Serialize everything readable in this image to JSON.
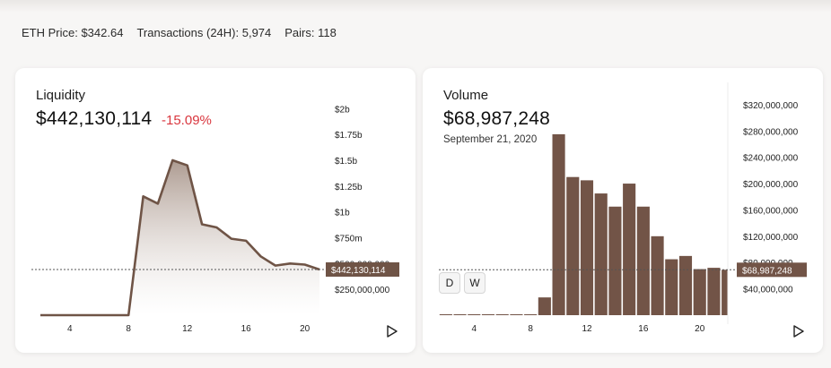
{
  "stats": {
    "eth_price": "ETH Price: $342.64",
    "transactions": "Transactions (24H): 5,974",
    "pairs": "Pairs: 118"
  },
  "liquidity": {
    "label": "Liquidity",
    "value": "$442,130,114",
    "change": "-15.09%",
    "current_tag": "$442,130,114",
    "y_ticks": [
      "$2b",
      "$1.75b",
      "$1.5b",
      "$1.25b",
      "$1b",
      "$750m",
      "$500,000,000",
      "$250,000,000"
    ],
    "x_ticks": [
      "4",
      "8",
      "12",
      "16",
      "20"
    ]
  },
  "volume": {
    "label": "Volume",
    "value": "$68,987,248",
    "date": "September 21, 2020",
    "current_tag": "$68,987,248",
    "y_ticks": [
      "$320,000,000",
      "$280,000,000",
      "$240,000,000",
      "$200,000,000",
      "$160,000,000",
      "$120,000,000",
      "$80,000,000",
      "$40,000,000"
    ],
    "x_ticks": [
      "4",
      "8",
      "12",
      "16",
      "20"
    ],
    "buttons": {
      "day": "D",
      "week": "W"
    }
  },
  "colors": {
    "line": "#6f5446",
    "bar": "#725447",
    "negative": "#d9363e"
  },
  "chart_data": [
    {
      "type": "area",
      "title": "Liquidity",
      "x": [
        2,
        4,
        6,
        8,
        9,
        10,
        11,
        12,
        13,
        14,
        15,
        16,
        17,
        18,
        19,
        20,
        21
      ],
      "values": [
        0,
        0,
        0,
        0,
        1150000000,
        1080000000,
        1500000000,
        1450000000,
        880000000,
        850000000,
        740000000,
        720000000,
        570000000,
        480000000,
        500000000,
        490000000,
        442130114
      ],
      "current": 442130114,
      "ylim": [
        0,
        2150000000
      ],
      "xticks": [
        4,
        8,
        12,
        16,
        20
      ]
    },
    {
      "type": "bar",
      "title": "Volume",
      "x": [
        2,
        3,
        4,
        5,
        6,
        7,
        8,
        9,
        10,
        11,
        12,
        13,
        14,
        15,
        16,
        17,
        18,
        19,
        20,
        21,
        22
      ],
      "values": [
        500000,
        500000,
        500000,
        500000,
        500000,
        500000,
        500000,
        27000000,
        275000000,
        210000000,
        205000000,
        185000000,
        165000000,
        200000000,
        165000000,
        120000000,
        85000000,
        90000000,
        70000000,
        72000000,
        68987248
      ],
      "current": 68987248,
      "ylim": [
        0,
        328000000
      ],
      "xticks": [
        4,
        8,
        12,
        16,
        20
      ]
    }
  ]
}
